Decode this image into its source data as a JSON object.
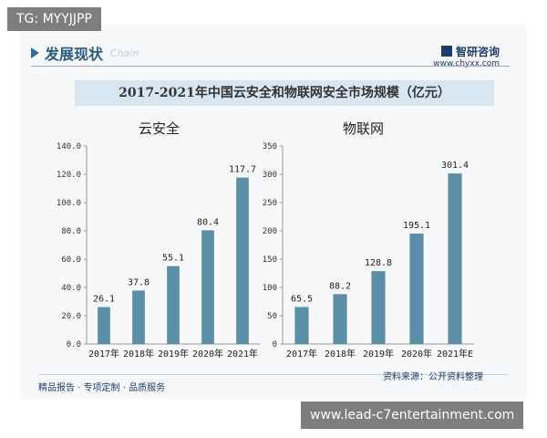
{
  "tag": "TG: MYYJJPP",
  "section": {
    "title": "发展现状",
    "subtitle": "Chain"
  },
  "logo": {
    "brand": "智研咨询",
    "url": "www.chyxx.com"
  },
  "banner_title": "2017-2021年中国云安全和物联网安全市场规模（亿元）",
  "footer": {
    "left": "精品报告 · 专项定制 · 品质服务",
    "source": "资料来源：公开资料整理"
  },
  "watermark": "www.lead-c7entertainment.com",
  "colors": {
    "bar": "#5b8fa8",
    "accent": "#2f6e8e"
  },
  "chart_data": [
    {
      "type": "bar",
      "title": "云安全",
      "categories": [
        "2017年",
        "2018年",
        "2019年",
        "2020年",
        "2021年"
      ],
      "values": [
        26.1,
        37.8,
        55.1,
        80.4,
        117.7
      ],
      "value_labels": [
        "26.1",
        "37.8",
        "55.1",
        "80.4",
        "117.7"
      ],
      "ylim": [
        0,
        140
      ],
      "yticks": [
        "0.0",
        "20.0",
        "40.0",
        "60.0",
        "80.0",
        "100.0",
        "120.0",
        "140.0"
      ],
      "ytick_values": [
        0,
        20,
        40,
        60,
        80,
        100,
        120,
        140
      ],
      "grid": false
    },
    {
      "type": "bar",
      "title": "物联网",
      "categories": [
        "2017年",
        "2018年",
        "2019年",
        "2020年",
        "2021年E"
      ],
      "values": [
        65.5,
        88.2,
        128.8,
        195.1,
        301.4
      ],
      "value_labels": [
        "65.5",
        "88.2",
        "128.8",
        "195.1",
        "301.4"
      ],
      "ylim": [
        0,
        350
      ],
      "yticks": [
        "0",
        "50",
        "100",
        "150",
        "200",
        "250",
        "300",
        "350"
      ],
      "ytick_values": [
        0,
        50,
        100,
        150,
        200,
        250,
        300,
        350
      ],
      "grid": false
    }
  ]
}
